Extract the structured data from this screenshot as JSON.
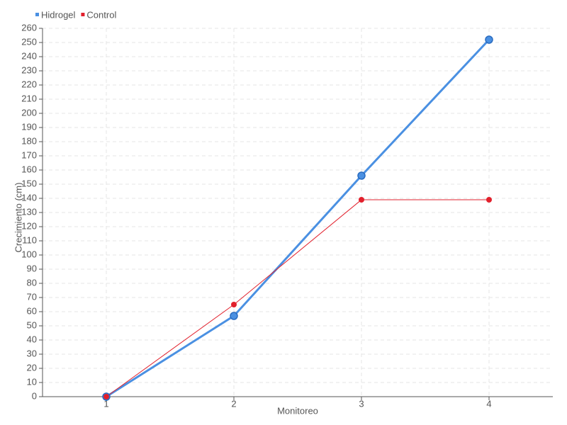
{
  "chart_data": {
    "type": "line",
    "x_label": "Monitoreo",
    "y_label": "Crecimiento (cm)",
    "x": [
      1,
      2,
      3,
      4
    ],
    "xlim": [
      0.5,
      4.5
    ],
    "xticks": [
      1,
      2,
      3,
      4
    ],
    "ylim": [
      0,
      260
    ],
    "yticks": [
      0,
      10,
      20,
      30,
      40,
      50,
      60,
      70,
      80,
      90,
      100,
      110,
      120,
      130,
      140,
      150,
      160,
      170,
      180,
      190,
      200,
      210,
      220,
      230,
      240,
      250,
      260
    ],
    "grid": true,
    "legend": "top-left",
    "series": [
      {
        "name": "Hidrogel",
        "color": "#4a90e2",
        "values": [
          0,
          57,
          156,
          252
        ]
      },
      {
        "name": "Control",
        "color": "#e2202c",
        "values": [
          0,
          65,
          139,
          139
        ]
      }
    ]
  }
}
